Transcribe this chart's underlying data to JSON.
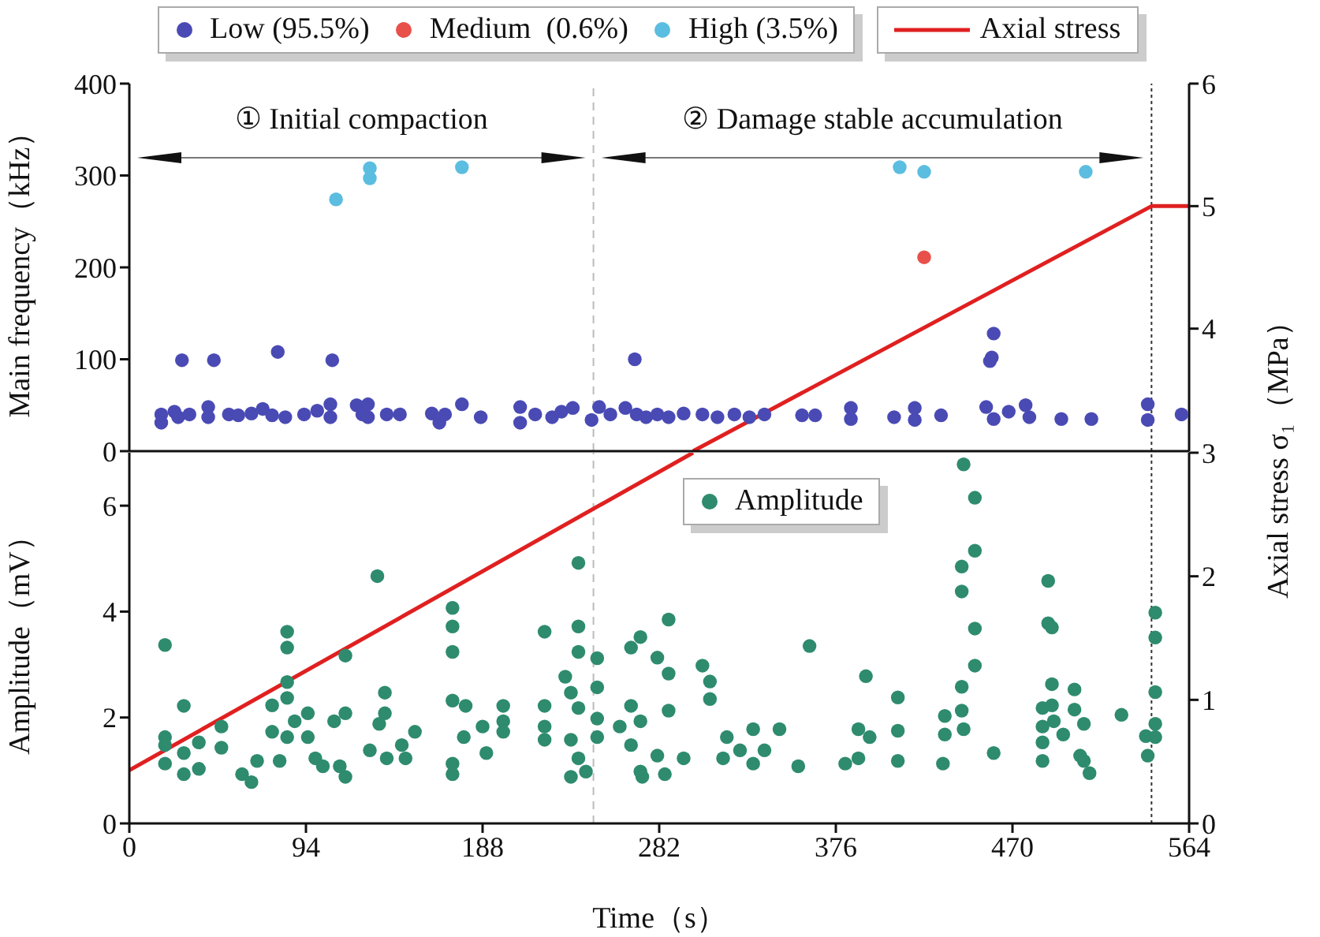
{
  "chart_data": [
    {
      "type": "scatter",
      "ylabel": "Main frequency（kHz）",
      "y2label": "Axial stress σ₁（MPa）",
      "xlim": [
        0,
        564
      ],
      "ylim": [
        0,
        400
      ],
      "yticks": [
        0,
        100,
        200,
        300,
        400
      ],
      "y2lim": [
        3,
        6
      ],
      "y2ticks": [
        4,
        5,
        6
      ],
      "tick_labels": "y",
      "legend": "top",
      "annotations": [
        "① Initial compaction",
        "② Damage stable accumulation"
      ],
      "ref_lines": [
        {
          "axis": "x",
          "value": 247,
          "color": "#bbbbbb",
          "line_style": "dashed"
        },
        {
          "axis": "x",
          "value": 544,
          "color": "#333333",
          "line_style": "dotted"
        }
      ],
      "series": [
        {
          "name": "Low (95.5%)",
          "color": "#4a4ab5",
          "x": [
            17,
            17,
            24,
            26,
            28,
            32,
            42,
            42,
            45,
            53,
            58,
            65,
            71,
            76,
            79,
            83,
            93,
            100,
            107,
            107,
            108,
            121,
            124,
            127,
            127,
            137,
            144,
            161,
            165,
            168,
            177,
            187,
            208,
            208,
            216,
            225,
            230,
            236,
            246,
            250,
            256,
            264,
            269,
            270,
            275,
            281,
            287,
            295,
            305,
            313,
            322,
            330,
            338,
            358,
            365,
            384,
            384,
            407,
            418,
            418,
            432,
            456,
            458,
            459,
            460,
            460,
            468,
            477,
            479,
            496,
            512,
            542,
            542,
            560
          ],
          "values": [
            31,
            40,
            43,
            37,
            99,
            40,
            48,
            37,
            99,
            40,
            39,
            41,
            46,
            39,
            108,
            37,
            40,
            44,
            51,
            37,
            99,
            50,
            40,
            51,
            37,
            40,
            40,
            41,
            31,
            40,
            51,
            37,
            48,
            31,
            40,
            37,
            43,
            47,
            34,
            48,
            40,
            47,
            100,
            40,
            37,
            40,
            37,
            41,
            40,
            37,
            40,
            37,
            40,
            39,
            39,
            47,
            35,
            37,
            47,
            34,
            39,
            48,
            98,
            102,
            35,
            128,
            43,
            50,
            37,
            35,
            35,
            51,
            34,
            40
          ]
        },
        {
          "name": "Medium  (0.6%)",
          "color": "#e8504a",
          "x": [
            423
          ],
          "values": [
            211
          ]
        },
        {
          "name": "High (3.5%)",
          "color": "#5bbde0",
          "x": [
            110,
            128,
            128,
            177,
            410,
            423,
            509
          ],
          "values": [
            274,
            297,
            308,
            309,
            309,
            304,
            304
          ]
        },
        {
          "name": "Axial stress",
          "type": "line",
          "axis": "y2",
          "color": "#e02020",
          "x": [
            300,
            544,
            564
          ],
          "values": [
            3,
            5,
            5
          ]
        }
      ]
    },
    {
      "type": "scatter",
      "xlabel": "Time（s）",
      "ylabel": "Amplitude（mV）",
      "xlim": [
        0,
        564
      ],
      "xticks": [
        0,
        94,
        188,
        282,
        376,
        470,
        564
      ],
      "ylim": [
        0,
        7
      ],
      "yticks": [
        0,
        2,
        4,
        6
      ],
      "y2lim": [
        0,
        3
      ],
      "y2ticks": [
        0,
        1,
        2,
        3
      ],
      "legend": "top",
      "ref_lines": [
        {
          "axis": "x",
          "value": 247,
          "color": "#bbbbbb",
          "line_style": "dashed"
        },
        {
          "axis": "x",
          "value": 544,
          "color": "#333333",
          "line_style": "dotted"
        }
      ],
      "series": [
        {
          "name": "Amplitude",
          "color": "#2e8b6e",
          "x": [
            19,
            19,
            19,
            19,
            29,
            29,
            29,
            37,
            37,
            49,
            49,
            60,
            65,
            68,
            76,
            76,
            80,
            84,
            84,
            84,
            84,
            84,
            88,
            95,
            95,
            99,
            103,
            109,
            112,
            115,
            115,
            115,
            128,
            132,
            136,
            136,
            133,
            137,
            145,
            147,
            152,
            172,
            172,
            172,
            172,
            172,
            172,
            179,
            178,
            188,
            190,
            199,
            199,
            199,
            221,
            221,
            221,
            221,
            232,
            235,
            235,
            235,
            239,
            239,
            239,
            239,
            239,
            243,
            249,
            249,
            249,
            249,
            261,
            267,
            272,
            267,
            272,
            267,
            272,
            273,
            281,
            281,
            287,
            287,
            287,
            285,
            295,
            305,
            309,
            309,
            316,
            318,
            325,
            332,
            332,
            338,
            346,
            356,
            362,
            381,
            388,
            388,
            392,
            394,
            409,
            409,
            409,
            433,
            434,
            434,
            443,
            443,
            443,
            443,
            444,
            444,
            450,
            450,
            450,
            450,
            460,
            486,
            486,
            486,
            486,
            489,
            489,
            491,
            491,
            491,
            492,
            497,
            503,
            503,
            508,
            506,
            508,
            511,
            528,
            542,
            541,
            546,
            546,
            546,
            546,
            546
          ],
          "values": [
            3.37,
            1.63,
            1.48,
            1.13,
            2.22,
            1.33,
            0.93,
            1.53,
            1.03,
            1.83,
            1.43,
            0.93,
            0.78,
            1.18,
            2.23,
            1.73,
            1.18,
            3.62,
            3.32,
            2.67,
            2.37,
            1.63,
            1.93,
            2.08,
            1.63,
            1.23,
            1.08,
            1.93,
            1.08,
            3.17,
            2.08,
            0.88,
            1.38,
            4.67,
            2.47,
            2.08,
            1.88,
            1.23,
            1.48,
            1.23,
            1.73,
            4.07,
            3.72,
            3.24,
            2.32,
            1.13,
            0.93,
            2.22,
            1.63,
            1.83,
            1.33,
            2.22,
            1.93,
            1.73,
            3.62,
            2.22,
            1.83,
            1.58,
            2.77,
            2.47,
            1.58,
            0.88,
            4.92,
            3.72,
            3.24,
            2.18,
            1.23,
            0.98,
            3.12,
            2.57,
            1.98,
            1.63,
            1.83,
            3.32,
            3.52,
            2.22,
            1.93,
            1.48,
            0.98,
            0.88,
            1.28,
            3.13,
            3.85,
            2.83,
            2.13,
            0.93,
            1.23,
            2.98,
            2.68,
            2.35,
            1.23,
            1.63,
            1.38,
            1.78,
            1.13,
            1.38,
            1.78,
            1.08,
            3.35,
            1.13,
            1.23,
            1.78,
            2.78,
            1.63,
            2.38,
            1.75,
            1.18,
            1.13,
            2.03,
            1.68,
            2.58,
            2.13,
            4.38,
            4.85,
            1.78,
            6.78,
            6.15,
            5.15,
            3.68,
            2.98,
            1.33,
            1.18,
            1.53,
            1.83,
            2.18,
            4.58,
            3.78,
            3.7,
            2.63,
            2.23,
            1.93,
            1.68,
            2.53,
            2.15,
            1.88,
            1.28,
            1.18,
            0.95,
            2.05,
            1.28,
            1.65,
            3.98,
            3.51,
            2.48,
            1.88,
            1.63
          ]
        },
        {
          "type": "line",
          "axis": "y2",
          "color": "#e02020",
          "x": [
            0,
            300
          ],
          "values": [
            0.43,
            3
          ]
        }
      ]
    }
  ]
}
